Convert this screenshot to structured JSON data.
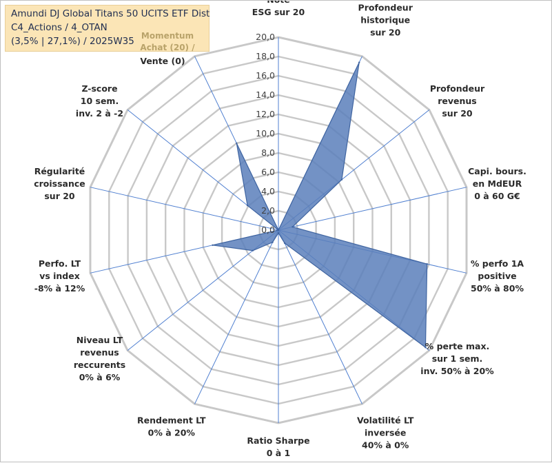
{
  "header": {
    "title_line1": "Amundi DJ Global Titans 50 UCITS ETF Dist",
    "title_line2": "C4_Actions / 4_OTAN",
    "title_line3": "(3,5% | 27,1%) / 2025W35",
    "momentum_line1": "Momentum",
    "momentum_line2": "Achat (20) /",
    "momentum_line3": "Vente (0)"
  },
  "chart_data": {
    "type": "radar",
    "rmin": 0,
    "rmax": 20,
    "tick_step": 2,
    "tick_labels": [
      "0,0",
      "2,0",
      "4,0",
      "6,0",
      "8,0",
      "10,0",
      "12,0",
      "14,0",
      "16,0",
      "18,0",
      "20,0"
    ],
    "grid": true,
    "axes": [
      [
        "Note",
        "ESG sur 20"
      ],
      [
        "Profondeur",
        "historique",
        "sur 20"
      ],
      [
        "Profondeur",
        "revenus",
        "sur 20"
      ],
      [
        "Capi. bours.",
        "en MdEUR",
        "0 à 60 G€"
      ],
      [
        "% perfo 1A",
        "positive",
        "50% à 80%"
      ],
      [
        "% perte max.",
        "sur 1 sem.",
        "inv. 50% à 20%"
      ],
      [
        "Volatilité LT",
        "inversée",
        "40% à 0%"
      ],
      [
        "Ratio Sharpe",
        "0 à 1"
      ],
      [
        "Rendement LT",
        "0% à 20%"
      ],
      [
        "Niveau LT",
        "revenus",
        "reccurents",
        "0% à 6%"
      ],
      [
        "Perfo. LT",
        "vs index",
        "-8% à 12%"
      ],
      [
        "Régularité",
        "croissance",
        "sur 20"
      ],
      [
        "Z-score",
        "10 sem.",
        "inv. 2 à -2"
      ],
      [
        "Momentum",
        "Achat (20) /",
        "Vente (0)"
      ]
    ],
    "series": [
      {
        "values": [
          0.0,
          19.3,
          8.4,
          1.5,
          15.8,
          19.5,
          1.5,
          0.3,
          1.4,
          3.4,
          7.0,
          0.0,
          4.1,
          10.0
        ],
        "color": "#5b7fbb",
        "fill_opacity": 0.85
      }
    ],
    "colors": {
      "grid": "#c8c8c8",
      "spoke": "#4f7fd0",
      "fill": "#5b7fbb",
      "stroke": "#3f64a0"
    }
  }
}
